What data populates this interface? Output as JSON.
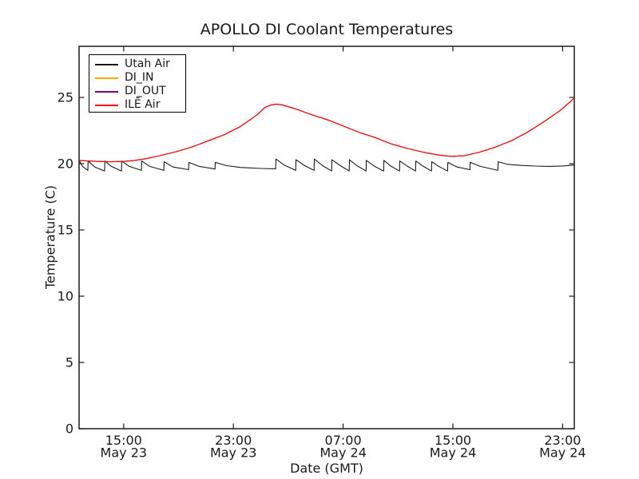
{
  "figure_background": "#ffffff",
  "axes_color": "#1c1c1c",
  "chart_data": {
    "type": "line",
    "title": "APOLLO DI Coolant Temperatures",
    "xlabel": "Date (GMT)",
    "ylabel": "Temperature (C)",
    "grid": false,
    "legend": {
      "position": "upper-left",
      "border_color": "#000000",
      "background": "#ffffff"
    },
    "x_axis": {
      "description": "time axis; positions are hours after May 23 00:00 GMT",
      "lim": [
        11.75,
        47.85
      ],
      "ticks": [
        {
          "pos": 15,
          "time": "15:00",
          "date": "May 23"
        },
        {
          "pos": 23,
          "time": "23:00",
          "date": "May 23"
        },
        {
          "pos": 31,
          "time": "07:00",
          "date": "May 24"
        },
        {
          "pos": 39,
          "time": "15:00",
          "date": "May 24"
        },
        {
          "pos": 47,
          "time": "23:00",
          "date": "May 24"
        }
      ]
    },
    "y_axis": {
      "lim": [
        0,
        28.86
      ],
      "ticks": [
        {
          "pos": 0,
          "label": "0"
        },
        {
          "pos": 5,
          "label": "5"
        },
        {
          "pos": 10,
          "label": "10"
        },
        {
          "pos": 15,
          "label": "15"
        },
        {
          "pos": 20,
          "label": "20"
        },
        {
          "pos": 25,
          "label": "25"
        }
      ]
    },
    "series": [
      {
        "name": "Utah Air",
        "color": "#1a1a1a",
        "points": [
          [
            11.75,
            20.28
          ],
          [
            12.0,
            19.8
          ],
          [
            12.39,
            19.5
          ],
          [
            12.41,
            20.2
          ],
          [
            12.9,
            19.75
          ],
          [
            13.61,
            19.45
          ],
          [
            13.63,
            20.2
          ],
          [
            14.1,
            19.8
          ],
          [
            14.84,
            19.45
          ],
          [
            14.86,
            20.2
          ],
          [
            15.4,
            19.8
          ],
          [
            16.3,
            19.5
          ],
          [
            16.32,
            20.2
          ],
          [
            16.9,
            19.8
          ],
          [
            17.93,
            19.5
          ],
          [
            17.95,
            20.15
          ],
          [
            18.6,
            19.75
          ],
          [
            19.73,
            19.55
          ],
          [
            19.75,
            20.1
          ],
          [
            20.5,
            19.8
          ],
          [
            21.66,
            19.6
          ],
          [
            21.68,
            20.1
          ],
          [
            22.5,
            19.85
          ],
          [
            23.5,
            19.72
          ],
          [
            25.0,
            19.64
          ],
          [
            26.08,
            19.62
          ],
          [
            26.1,
            20.35
          ],
          [
            26.7,
            19.9
          ],
          [
            27.54,
            19.5
          ],
          [
            27.56,
            20.3
          ],
          [
            28.2,
            19.85
          ],
          [
            28.88,
            19.5
          ],
          [
            28.9,
            20.35
          ],
          [
            29.5,
            19.85
          ],
          [
            30.16,
            19.45
          ],
          [
            30.18,
            20.3
          ],
          [
            30.8,
            19.85
          ],
          [
            31.44,
            19.45
          ],
          [
            31.46,
            20.3
          ],
          [
            32.0,
            19.85
          ],
          [
            32.67,
            19.45
          ],
          [
            32.69,
            20.25
          ],
          [
            33.3,
            19.8
          ],
          [
            33.95,
            19.45
          ],
          [
            33.97,
            20.25
          ],
          [
            34.5,
            19.8
          ],
          [
            35.11,
            19.45
          ],
          [
            35.13,
            20.2
          ],
          [
            35.7,
            19.8
          ],
          [
            36.28,
            19.45
          ],
          [
            36.3,
            20.2
          ],
          [
            36.85,
            19.8
          ],
          [
            37.44,
            19.45
          ],
          [
            37.46,
            20.15
          ],
          [
            38.0,
            19.78
          ],
          [
            38.61,
            19.45
          ],
          [
            38.63,
            20.1
          ],
          [
            39.3,
            19.75
          ],
          [
            40.24,
            19.55
          ],
          [
            40.26,
            20.1
          ],
          [
            41.0,
            19.8
          ],
          [
            42.28,
            19.5
          ],
          [
            42.3,
            20.15
          ],
          [
            43.0,
            19.95
          ],
          [
            44.0,
            19.87
          ],
          [
            45.0,
            19.82
          ],
          [
            46.0,
            19.8
          ],
          [
            47.0,
            19.83
          ],
          [
            47.85,
            19.9
          ]
        ]
      },
      {
        "name": "DI_IN",
        "color": "#ffa500",
        "hidden_behind": "ILĒ Air",
        "values_same_as": "ILĒ Air"
      },
      {
        "name": "DI_OUT",
        "color": "#800080",
        "hidden_behind": "ILĒ Air",
        "values_same_as": "ILĒ Air"
      },
      {
        "name": "ILĒ Air",
        "color": "#ff0000",
        "points": [
          [
            11.75,
            20.25
          ],
          [
            12.5,
            20.2
          ],
          [
            13.2,
            20.17
          ],
          [
            14.1,
            20.15
          ],
          [
            15.0,
            20.17
          ],
          [
            15.8,
            20.25
          ],
          [
            16.5,
            20.35
          ],
          [
            17.6,
            20.6
          ],
          [
            18.8,
            20.9
          ],
          [
            20.0,
            21.27
          ],
          [
            21.1,
            21.7
          ],
          [
            22.3,
            22.17
          ],
          [
            23.5,
            22.8
          ],
          [
            24.2,
            23.3
          ],
          [
            24.8,
            23.75
          ],
          [
            25.3,
            24.25
          ],
          [
            25.7,
            24.42
          ],
          [
            26.1,
            24.5
          ],
          [
            26.5,
            24.45
          ],
          [
            27.0,
            24.3
          ],
          [
            27.5,
            24.15
          ],
          [
            28.7,
            23.7
          ],
          [
            29.9,
            23.3
          ],
          [
            31.0,
            22.85
          ],
          [
            32.2,
            22.35
          ],
          [
            33.4,
            21.95
          ],
          [
            34.5,
            21.5
          ],
          [
            35.7,
            21.15
          ],
          [
            36.9,
            20.85
          ],
          [
            38.0,
            20.65
          ],
          [
            38.9,
            20.55
          ],
          [
            39.8,
            20.6
          ],
          [
            40.9,
            20.85
          ],
          [
            42.1,
            21.25
          ],
          [
            43.3,
            21.75
          ],
          [
            44.4,
            22.35
          ],
          [
            45.6,
            23.15
          ],
          [
            46.8,
            24.0
          ],
          [
            47.85,
            24.95
          ]
        ]
      }
    ]
  }
}
